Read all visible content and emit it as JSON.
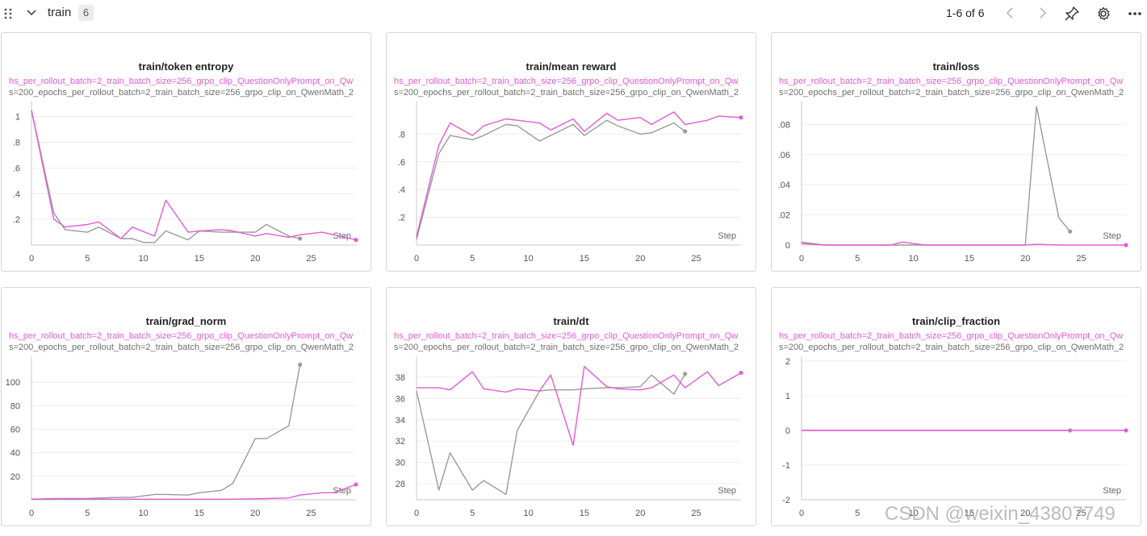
{
  "header": {
    "section_title": "train",
    "count": "6",
    "pager": "1-6 of 6",
    "icons": [
      "drag-handle-icon",
      "chevron-down-icon",
      "chevron-left-icon",
      "chevron-right-icon",
      "pin-icon",
      "gear-icon",
      "more-icon"
    ]
  },
  "colors": {
    "pink": "#e45bd5",
    "gray": "#9a9a9a",
    "grid": "#ececec"
  },
  "legend": {
    "pink": "hs_per_rollout_batch=2_train_batch_size=256_grpo_clip_QuestionOnlyPrompt_on_Qw",
    "gray": "s=200_epochs_per_rollout_batch=2_train_batch_size=256_grpo_clip_on_QwenMath_2"
  },
  "step_label": "Step",
  "watermark": "CSDN @weixin_43807749",
  "chart_data": [
    {
      "type": "line",
      "title": "train/token entropy",
      "xlabel": "Step",
      "xlim": [
        0,
        29
      ],
      "ylim": [
        0,
        1.08
      ],
      "yticks": [
        0.2,
        0.4,
        0.6,
        0.8,
        1
      ],
      "ytick_labels": [
        ".2",
        ".4",
        ".6",
        ".8",
        "1"
      ],
      "xticks": [
        0,
        5,
        10,
        15,
        20,
        25
      ],
      "xtick_labels": [
        "0",
        "5",
        "10",
        "15",
        "20",
        "25"
      ],
      "series": [
        {
          "name": "pink",
          "x": [
            0,
            2,
            3,
            5,
            6,
            8,
            9,
            11,
            12,
            14,
            15,
            17,
            18,
            20,
            21,
            23,
            24,
            26,
            27,
            28,
            29
          ],
          "y": [
            1.05,
            0.2,
            0.14,
            0.16,
            0.18,
            0.05,
            0.14,
            0.07,
            0.35,
            0.1,
            0.11,
            0.12,
            0.11,
            0.07,
            0.09,
            0.06,
            0.08,
            0.1,
            0.08,
            0.06,
            0.04
          ]
        },
        {
          "name": "gray",
          "x": [
            0,
            2,
            3,
            5,
            6,
            8,
            9,
            10,
            11,
            12,
            14,
            15,
            17,
            18,
            20,
            21,
            23,
            24
          ],
          "y": [
            1.05,
            0.25,
            0.12,
            0.1,
            0.14,
            0.05,
            0.05,
            0.02,
            0.02,
            0.11,
            0.04,
            0.11,
            0.1,
            0.1,
            0.1,
            0.16,
            0.07,
            0.05
          ]
        }
      ]
    },
    {
      "type": "line",
      "title": "train/mean reward",
      "xlabel": "Step",
      "xlim": [
        0,
        29
      ],
      "ylim": [
        0,
        1
      ],
      "yticks": [
        0.2,
        0.4,
        0.6,
        0.8
      ],
      "ytick_labels": [
        ".2",
        ".4",
        ".6",
        ".8"
      ],
      "xticks": [
        0,
        5,
        10,
        15,
        20,
        25
      ],
      "xtick_labels": [
        "0",
        "5",
        "10",
        "15",
        "20",
        "25"
      ],
      "series": [
        {
          "name": "pink",
          "x": [
            0,
            2,
            3,
            5,
            6,
            8,
            9,
            11,
            12,
            14,
            15,
            17,
            18,
            20,
            21,
            23,
            24,
            26,
            27,
            29
          ],
          "y": [
            0.06,
            0.72,
            0.88,
            0.79,
            0.86,
            0.91,
            0.9,
            0.88,
            0.83,
            0.91,
            0.82,
            0.95,
            0.9,
            0.92,
            0.87,
            0.96,
            0.87,
            0.9,
            0.93,
            0.92
          ]
        },
        {
          "name": "gray",
          "x": [
            0,
            2,
            3,
            5,
            6,
            8,
            9,
            11,
            12,
            14,
            15,
            17,
            18,
            20,
            21,
            23,
            24
          ],
          "y": [
            0.04,
            0.66,
            0.79,
            0.76,
            0.79,
            0.87,
            0.86,
            0.75,
            0.79,
            0.87,
            0.79,
            0.9,
            0.86,
            0.8,
            0.81,
            0.88,
            0.82
          ]
        }
      ]
    },
    {
      "type": "line",
      "title": "train/loss",
      "xlabel": "Step",
      "xlim": [
        0,
        29
      ],
      "ylim": [
        0,
        0.092
      ],
      "yticks": [
        0,
        0.02,
        0.04,
        0.06,
        0.08
      ],
      "ytick_labels": [
        "0",
        ".02",
        ".04",
        ".06",
        ".08"
      ],
      "xticks": [
        0,
        5,
        10,
        15,
        20,
        25
      ],
      "xtick_labels": [
        "0",
        "5",
        "10",
        "15",
        "20",
        "25"
      ],
      "series": [
        {
          "name": "pink",
          "x": [
            0,
            2,
            3,
            5,
            6,
            8,
            9,
            11,
            12,
            14,
            15,
            17,
            18,
            20,
            21,
            23,
            24,
            26,
            27,
            29
          ],
          "y": [
            0.001,
            0.0,
            0.0,
            0.0,
            0.0,
            0.0,
            0.002,
            0.0,
            0.0,
            0.0,
            0.0,
            0.0,
            0.0,
            0.0,
            0.0005,
            0.0,
            0.0,
            0.0,
            0.0,
            0.0
          ]
        },
        {
          "name": "gray",
          "x": [
            0,
            2,
            3,
            5,
            6,
            8,
            9,
            11,
            12,
            14,
            15,
            17,
            18,
            20,
            21,
            23,
            24
          ],
          "y": [
            0.002,
            0.0,
            0.0,
            0.0,
            0.0,
            0.0,
            0.0,
            0.0,
            0.0,
            0.0,
            0.0,
            0.0,
            0.0,
            0.0,
            0.092,
            0.018,
            0.009
          ]
        }
      ]
    },
    {
      "type": "line",
      "title": "train/grad_norm",
      "xlabel": "Step",
      "xlim": [
        0,
        29
      ],
      "ylim": [
        0,
        118
      ],
      "yticks": [
        20,
        40,
        60,
        80,
        100
      ],
      "ytick_labels": [
        "20",
        "40",
        "60",
        "80",
        "100"
      ],
      "xticks": [
        0,
        5,
        10,
        15,
        20,
        25
      ],
      "xtick_labels": [
        "0",
        "5",
        "10",
        "15",
        "20",
        "25"
      ],
      "series": [
        {
          "name": "pink",
          "x": [
            0,
            2,
            3,
            5,
            6,
            8,
            9,
            11,
            12,
            14,
            15,
            17,
            18,
            20,
            21,
            23,
            24,
            26,
            27,
            29
          ],
          "y": [
            0.3,
            0.5,
            0.5,
            0.5,
            0.5,
            0.5,
            0.5,
            0.5,
            0.5,
            0.5,
            0.5,
            0.5,
            0.5,
            0.8,
            1,
            1.5,
            4,
            6,
            6,
            13
          ]
        },
        {
          "name": "gray",
          "x": [
            0,
            2,
            3,
            5,
            6,
            8,
            9,
            11,
            12,
            14,
            15,
            17,
            18,
            20,
            21,
            23,
            24
          ],
          "y": [
            0.5,
            1,
            1,
            1,
            1.5,
            2,
            2,
            4.5,
            4.5,
            4,
            6,
            8,
            14,
            52,
            52,
            63,
            115
          ]
        }
      ]
    },
    {
      "type": "line",
      "title": "train/dt",
      "xlabel": "Step",
      "xlim": [
        0,
        29
      ],
      "ylim": [
        26.5,
        39.5
      ],
      "yticks": [
        28,
        30,
        32,
        34,
        36,
        38
      ],
      "ytick_labels": [
        "28",
        "30",
        "32",
        "34",
        "36",
        "38"
      ],
      "xticks": [
        0,
        5,
        10,
        15,
        20,
        25
      ],
      "xtick_labels": [
        "0",
        "5",
        "10",
        "15",
        "20",
        "25"
      ],
      "series": [
        {
          "name": "pink",
          "x": [
            0,
            2,
            3,
            5,
            6,
            8,
            9,
            11,
            12,
            14,
            15,
            17,
            18,
            20,
            21,
            23,
            24,
            26,
            27,
            29
          ],
          "y": [
            37,
            37,
            36.8,
            38.5,
            36.9,
            36.6,
            36.9,
            36.7,
            38.2,
            31.6,
            39,
            37.1,
            36.9,
            36.8,
            37,
            38.2,
            37,
            38.5,
            37.2,
            38.4
          ]
        },
        {
          "name": "gray",
          "x": [
            0,
            2,
            3,
            5,
            6,
            8,
            9,
            11,
            12,
            14,
            15,
            17,
            18,
            20,
            21,
            23,
            24
          ],
          "y": [
            36.7,
            27.4,
            30.9,
            27.4,
            28.3,
            27,
            33,
            36.7,
            36.8,
            36.8,
            36.9,
            37,
            37,
            37.1,
            38.2,
            36.4,
            38.3
          ]
        }
      ]
    },
    {
      "type": "line",
      "title": "train/clip_fraction",
      "xlabel": "Step",
      "xlim": [
        0,
        29
      ],
      "ylim": [
        -2,
        2
      ],
      "yticks": [
        -2,
        -1,
        0,
        1,
        2
      ],
      "ytick_labels": [
        "-2",
        "-1",
        "0",
        "1",
        "2"
      ],
      "xticks": [
        0,
        5,
        10,
        15,
        20,
        25
      ],
      "xtick_labels": [
        "0",
        "5",
        "10",
        "15",
        "20",
        "25"
      ],
      "series": [
        {
          "name": "pink",
          "x": [
            0,
            29
          ],
          "y": [
            0,
            0
          ]
        },
        {
          "name": "gray",
          "x": [
            0,
            24
          ],
          "y": [
            0,
            0
          ]
        }
      ]
    }
  ]
}
